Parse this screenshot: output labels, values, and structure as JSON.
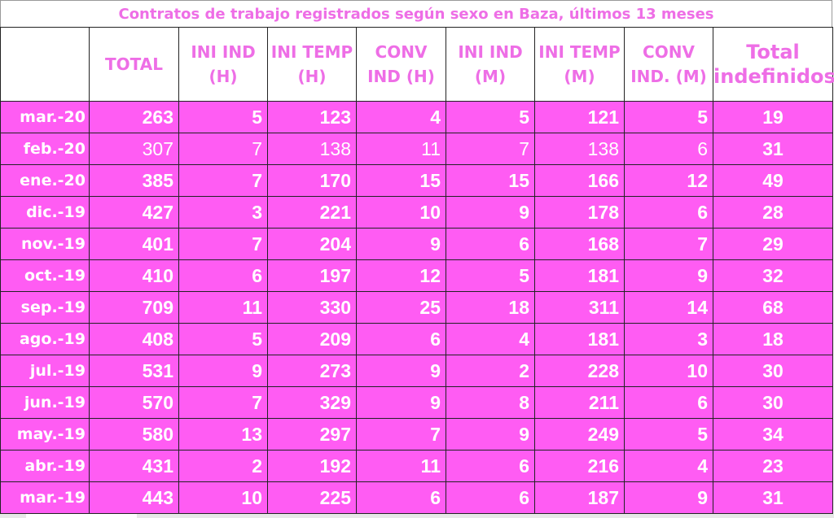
{
  "title": "Contratos de trabajo registrados según sexo en Baza, últimos 13 meses",
  "colors": {
    "row_background": "#ff5cf3",
    "header_text": "#ee6ee6",
    "cell_text": "#ffffff"
  },
  "chart_data": {
    "type": "table",
    "title": "Contratos de trabajo registrados según sexo en Baza, últimos 13 meses",
    "columns": [
      "",
      "TOTAL",
      "INI IND (H)",
      "INI TEMP (H)",
      "CONV IND (H)",
      "INI IND (M)",
      "INI TEMP (M)",
      "CONV IND.  (M)",
      "Total indefinidos"
    ],
    "header_lines": [
      [
        "",
        ""
      ],
      [
        "TOTAL",
        ""
      ],
      [
        "INI IND",
        "(H)"
      ],
      [
        "INI TEMP",
        "(H)"
      ],
      [
        "CONV",
        "IND (H)"
      ],
      [
        "INI IND",
        "(M)"
      ],
      [
        "INI TEMP",
        "(M)"
      ],
      [
        "CONV",
        "IND.  (M)"
      ],
      [
        "Total",
        "indefinidos"
      ]
    ],
    "rows": [
      {
        "month": "mar.-20",
        "values": [
          263,
          5,
          123,
          4,
          5,
          121,
          5,
          19
        ]
      },
      {
        "month": "feb.-20",
        "values": [
          307,
          7,
          138,
          11,
          7,
          138,
          6,
          31
        ]
      },
      {
        "month": "ene.-20",
        "values": [
          385,
          7,
          170,
          15,
          15,
          166,
          12,
          49
        ]
      },
      {
        "month": "dic.-19",
        "values": [
          427,
          3,
          221,
          10,
          9,
          178,
          6,
          28
        ]
      },
      {
        "month": "nov.-19",
        "values": [
          401,
          7,
          204,
          9,
          6,
          168,
          7,
          29
        ]
      },
      {
        "month": "oct.-19",
        "values": [
          410,
          6,
          197,
          12,
          5,
          181,
          9,
          32
        ]
      },
      {
        "month": "sep.-19",
        "values": [
          709,
          11,
          330,
          25,
          18,
          311,
          14,
          68
        ]
      },
      {
        "month": "ago.-19",
        "values": [
          408,
          5,
          209,
          6,
          4,
          181,
          3,
          18
        ]
      },
      {
        "month": "jul.-19",
        "values": [
          531,
          9,
          273,
          9,
          2,
          228,
          10,
          30
        ]
      },
      {
        "month": "jun.-19",
        "values": [
          570,
          7,
          329,
          9,
          8,
          211,
          6,
          30
        ]
      },
      {
        "month": "may.-19",
        "values": [
          580,
          13,
          297,
          7,
          9,
          249,
          5,
          34
        ]
      },
      {
        "month": "abr.-19",
        "values": [
          431,
          2,
          192,
          11,
          6,
          216,
          4,
          23
        ]
      },
      {
        "month": "mar.-19",
        "values": [
          443,
          10,
          225,
          6,
          6,
          187,
          9,
          31
        ]
      }
    ]
  }
}
